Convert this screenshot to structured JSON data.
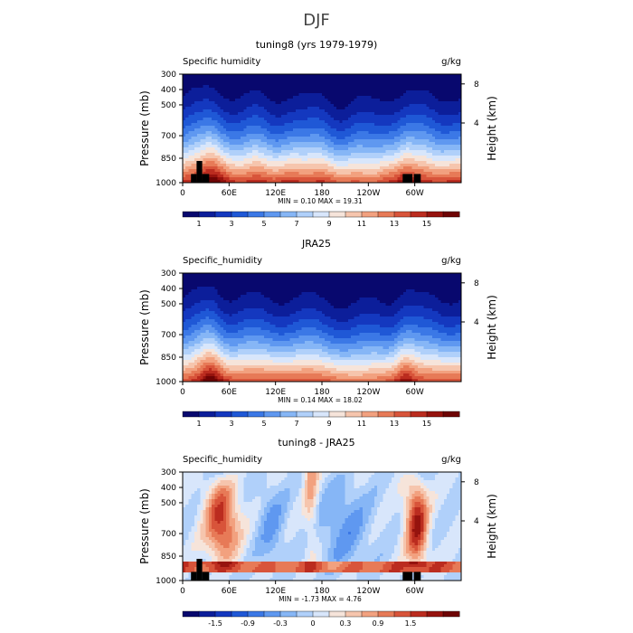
{
  "page_title": "DJF",
  "chart_data": [
    {
      "type": "heatmap",
      "title": "tuning8 (yrs 1979-1979)",
      "variable": "Specific humidity",
      "units": "g/kg",
      "ylabel": "Pressure (mb)",
      "y2label": "Height (km)",
      "x_ticks": [
        "0",
        "60E",
        "120E",
        "180",
        "120W",
        "60W"
      ],
      "y_ticks": [
        "300",
        "400",
        "500",
        "700",
        "850",
        "1000"
      ],
      "y2_ticks": [
        "8",
        "4"
      ],
      "stats": "MIN =    0.10   MAX =   19.31",
      "colorbar_labels": [
        "1",
        "3",
        "5",
        "7",
        "9",
        "11",
        "13",
        "15"
      ],
      "colormap": "blue-white-red",
      "topography_mask": true
    },
    {
      "type": "heatmap",
      "title": "JRA25",
      "variable": "Specific_humidity",
      "units": "g/kg",
      "ylabel": "Pressure (mb)",
      "y2label": "Height (km)",
      "x_ticks": [
        "0",
        "60E",
        "120E",
        "180",
        "120W",
        "60W"
      ],
      "y_ticks": [
        "300",
        "400",
        "500",
        "700",
        "850",
        "1000"
      ],
      "y2_ticks": [
        "8",
        "4"
      ],
      "stats": "MIN =    0.14   MAX =   18.02",
      "colorbar_labels": [
        "1",
        "3",
        "5",
        "7",
        "9",
        "11",
        "13",
        "15"
      ],
      "colormap": "blue-white-red",
      "topography_mask": false
    },
    {
      "type": "heatmap",
      "title": "tuning8 - JRA25",
      "variable": "Specific_humidity",
      "units": "g/kg",
      "ylabel": "Pressure (mb)",
      "y2label": "Height (km)",
      "x_ticks": [
        "0",
        "60E",
        "120E",
        "180",
        "120W",
        "60W"
      ],
      "y_ticks": [
        "300",
        "400",
        "500",
        "700",
        "850",
        "1000"
      ],
      "y2_ticks": [
        "8",
        "4"
      ],
      "stats": "MIN =   -1.73   MAX =    4.76",
      "colorbar_labels": [
        "-1.5",
        "-0.9",
        "-0.3",
        "0",
        "0.3",
        "0.9",
        "1.5"
      ],
      "colormap": "blue-white-red",
      "topography_mask": true
    }
  ],
  "colors": {
    "ramp": [
      "#08086e",
      "#0c1e9a",
      "#1438bf",
      "#1f58d6",
      "#3b78e6",
      "#5f98f0",
      "#86b6f6",
      "#b0d0fa",
      "#d8e6fb",
      "#f6e4da",
      "#f6c5ad",
      "#f2a17f",
      "#e77a57",
      "#d8543a",
      "#bb2c1f",
      "#96130e",
      "#6e0404"
    ],
    "mask": "#000000"
  }
}
